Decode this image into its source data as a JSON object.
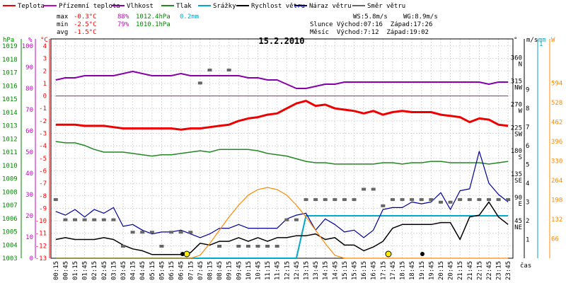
{
  "chart_data": {
    "type": "line",
    "title": "15.2.2010",
    "x_unit_label": "čas",
    "x_ticks": [
      "00:15",
      "00:45",
      "01:15",
      "01:45",
      "02:15",
      "02:45",
      "03:15",
      "03:45",
      "04:15",
      "04:45",
      "05:15",
      "05:45",
      "06:15",
      "06:45",
      "07:15",
      "07:45",
      "08:15",
      "08:45",
      "09:15",
      "09:45",
      "10:15",
      "10:45",
      "11:15",
      "11:45",
      "12:15",
      "12:45",
      "13:15",
      "13:45",
      "14:15",
      "14:45",
      "15:15",
      "15:45",
      "16:15",
      "16:45",
      "17:15",
      "17:45",
      "18:15",
      "18:45",
      "19:15",
      "19:45",
      "20:15",
      "20:45",
      "21:15",
      "21:45",
      "22:15",
      "22:45",
      "23:15",
      "23:45"
    ],
    "legend": [
      {
        "label": "Teplota",
        "color": "#ee0000"
      },
      {
        "label": "Přízemní teplota",
        "color": "#cc00cc"
      },
      {
        "label": "Vlhkost",
        "color": "#8800aa"
      },
      {
        "label": "Tlak",
        "color": "#228822"
      },
      {
        "label": "Srážky",
        "color": "#00aacc"
      },
      {
        "label": "Rychlost větru",
        "color": "#000000"
      },
      {
        "label": "Náraz větru",
        "color": "#000099"
      },
      {
        "label": "Směr větru",
        "color": "#666666"
      }
    ],
    "stats": {
      "max": {
        "label": "max",
        "temp": "-0.3°C",
        "hum": "88%",
        "press": "1012.4hPa",
        "rain": "0.2mm"
      },
      "min": {
        "label": "min",
        "temp": "-2.5°C",
        "hum": "79%",
        "press": "1010.1hPa"
      },
      "avg": {
        "label": "avg",
        "temp": "-1.5°C"
      },
      "ws": "WS:5.8m/s",
      "wg": "WG:8.9m/s",
      "sun": "Slunce Východ:07:16  Západ:17:26",
      "moon": "Měsíc  Východ:7:12  Západ:19:02"
    },
    "axes": {
      "hpa": {
        "unit": "hPa",
        "color": "#008800",
        "ticks": [
          "1019",
          "1018",
          "1017",
          "1016",
          "1015",
          "1014",
          "1013",
          "1012",
          "1011",
          "1010",
          "1009",
          "1008",
          "1007",
          "1006",
          "1005",
          "1004",
          "1003"
        ]
      },
      "pct": {
        "unit": "%",
        "color": "#cc00cc",
        "ticks": [
          "100",
          "90",
          "80",
          "70",
          "60",
          "50",
          "40",
          "30",
          "20",
          "10",
          "0"
        ]
      },
      "degc": {
        "unit": "°C",
        "color": "#ff0000",
        "ticks": [
          "4",
          "3",
          "2",
          "1",
          "0",
          "-1",
          "-2",
          "-3",
          "-4",
          "-5",
          "-6",
          "-7",
          "-8",
          "-9",
          "-10",
          "-11",
          "-12",
          "-13"
        ]
      },
      "dir": {
        "unit": "°",
        "color": "#000000",
        "ticks": [
          {
            "v": "360",
            "d": "N"
          },
          {
            "v": "315",
            "d": "NW"
          },
          {
            "v": "270",
            "d": "W"
          },
          {
            "v": "225",
            "d": "SW"
          },
          {
            "v": "180",
            "d": "S"
          },
          {
            "v": "135",
            "d": "SE"
          },
          {
            "v": "90",
            "d": "E"
          },
          {
            "v": "45",
            "d": "NE"
          }
        ]
      },
      "ms": {
        "unit": "m/s",
        "color": "#000000",
        "ticks": [
          "9",
          "8",
          "7",
          "6",
          "5",
          "4",
          "3",
          "2",
          "1"
        ]
      },
      "mm": {
        "unit": "mm",
        "color": "#00aacc",
        "ticks": [
          "1"
        ]
      },
      "w": {
        "unit": "W",
        "color": "#ff8800",
        "ticks": [
          "594",
          "528",
          "462",
          "396",
          "330",
          "264",
          "198",
          "132",
          "66"
        ]
      }
    },
    "series": [
      {
        "name": "Teplota",
        "unit": "°C",
        "color": "#ee0000",
        "values": [
          -2.3,
          -2.3,
          -2.3,
          -2.4,
          -2.4,
          -2.4,
          -2.5,
          -2.6,
          -2.6,
          -2.6,
          -2.6,
          -2.6,
          -2.6,
          -2.7,
          -2.6,
          -2.6,
          -2.5,
          -2.4,
          -2.3,
          -2.0,
          -1.8,
          -1.7,
          -1.5,
          -1.4,
          -1.0,
          -0.6,
          -0.4,
          -0.8,
          -0.7,
          -1.0,
          -1.1,
          -1.2,
          -1.4,
          -1.2,
          -1.5,
          -1.3,
          -1.2,
          -1.3,
          -1.3,
          -1.3,
          -1.5,
          -1.6,
          -1.7,
          -2.1,
          -1.8,
          -1.9,
          -2.3,
          -2.4
        ]
      },
      {
        "name": "Přízemní teplota",
        "unit": "°C",
        "color": "#cc00cc",
        "values": [
          0,
          0,
          0,
          0,
          0,
          0,
          0,
          0,
          0,
          0,
          0,
          0,
          0,
          0,
          0,
          0,
          0,
          0,
          0,
          0,
          0,
          0,
          0,
          0,
          0,
          0,
          0,
          0,
          0,
          0,
          0,
          0,
          0,
          0,
          0,
          0,
          0,
          0,
          0,
          0,
          0,
          0,
          0,
          0,
          0,
          0,
          0,
          0
        ]
      },
      {
        "name": "Vlhkost",
        "unit": "%",
        "color": "#8800aa",
        "values": [
          84,
          85,
          85,
          86,
          86,
          86,
          86,
          87,
          88,
          87,
          86,
          86,
          86,
          87,
          86,
          86,
          86,
          86,
          86,
          86,
          85,
          85,
          84,
          84,
          82,
          80,
          80,
          81,
          82,
          82,
          83,
          83,
          83,
          83,
          83,
          83,
          83,
          83,
          83,
          83,
          83,
          83,
          83,
          83,
          83,
          82,
          83,
          83
        ]
      },
      {
        "name": "Tlak",
        "unit": "hPa",
        "color": "#228822",
        "values": [
          1011.8,
          1011.7,
          1011.7,
          1011.5,
          1011.2,
          1011.0,
          1011.0,
          1011.0,
          1010.9,
          1010.8,
          1010.7,
          1010.8,
          1010.8,
          1010.9,
          1011.0,
          1011.1,
          1011.0,
          1011.2,
          1011.2,
          1011.2,
          1011.2,
          1011.1,
          1010.9,
          1010.8,
          1010.7,
          1010.5,
          1010.3,
          1010.2,
          1010.2,
          1010.1,
          1010.1,
          1010.1,
          1010.1,
          1010.1,
          1010.2,
          1010.2,
          1010.1,
          1010.2,
          1010.2,
          1010.3,
          1010.3,
          1010.2,
          1010.2,
          1010.2,
          1010.2,
          1010.1,
          1010.2,
          1010.3
        ]
      },
      {
        "name": "Srážky",
        "unit": "mm",
        "color": "#00aacc",
        "values": [
          0,
          0,
          0,
          0,
          0,
          0,
          0,
          0,
          0,
          0,
          0,
          0,
          0,
          0,
          0,
          0,
          0,
          0,
          0,
          0,
          0,
          0,
          0,
          0,
          0,
          0,
          0.2,
          0.2,
          0.2,
          0.2,
          0.2,
          0.2,
          0.2,
          0.2,
          0.2,
          0.2,
          0.2,
          0.2,
          0.2,
          0.2,
          0.2,
          0.2,
          0.2,
          0.2,
          0.2,
          0.2,
          0.2,
          0.2
        ]
      },
      {
        "name": "Rychlost větru",
        "unit": "m/s",
        "color": "#000000",
        "values": [
          1.0,
          1.1,
          1.0,
          1.0,
          1.0,
          1.1,
          1.0,
          0.7,
          0.5,
          0.4,
          0.2,
          0.2,
          0.2,
          0.2,
          0.3,
          0.8,
          0.7,
          0.9,
          0.9,
          1.1,
          0.9,
          1.1,
          0.9,
          1.1,
          1.1,
          1.2,
          1.2,
          1.3,
          1.0,
          1.1,
          0.7,
          0.7,
          0.4,
          0.6,
          0.9,
          1.6,
          1.8,
          1.8,
          1.8,
          1.8,
          1.9,
          1.9,
          1.0,
          2.2,
          2.3,
          3.0,
          2.2,
          1.8
        ]
      },
      {
        "name": "Náraz větru",
        "unit": "m/s",
        "color": "#000099",
        "values": [
          2.5,
          2.3,
          2.6,
          2.2,
          2.6,
          2.4,
          2.7,
          1.7,
          1.8,
          1.5,
          1.3,
          1.4,
          1.4,
          1.5,
          1.3,
          1.1,
          1.3,
          1.6,
          1.6,
          1.8,
          1.6,
          1.6,
          1.6,
          1.6,
          2.1,
          2.3,
          2.4,
          1.5,
          2.1,
          1.8,
          1.4,
          1.5,
          1.1,
          1.5,
          2.6,
          2.7,
          2.7,
          3.0,
          2.9,
          3.0,
          3.5,
          2.6,
          3.6,
          3.7,
          5.7,
          4.0,
          3.4,
          3.0
        ]
      },
      {
        "name": "Směr větru",
        "unit": "°",
        "color": "#666666",
        "values": [
          90,
          51,
          51,
          51,
          51,
          51,
          51,
          0,
          27,
          27,
          27,
          0,
          27,
          27,
          27,
          315,
          340,
          0,
          340,
          0,
          0,
          0,
          0,
          0,
          51,
          51,
          90,
          90,
          90,
          90,
          90,
          90,
          110,
          110,
          78,
          90,
          90,
          90,
          90,
          90,
          85,
          85,
          90,
          90,
          90,
          90,
          90,
          90
        ]
      },
      {
        "name": "Sluneční záření",
        "unit": "W",
        "color": "#ff8800",
        "values": [
          0,
          0,
          0,
          0,
          0,
          0,
          0,
          0,
          0,
          0,
          0,
          0,
          0,
          0,
          0,
          10,
          50,
          95,
          140,
          180,
          214,
          233,
          240,
          233,
          214,
          180,
          140,
          95,
          50,
          10,
          0,
          0,
          0,
          0,
          0,
          0,
          0,
          0,
          0,
          0,
          0,
          0,
          0,
          0,
          0,
          0,
          0,
          0
        ]
      }
    ]
  }
}
